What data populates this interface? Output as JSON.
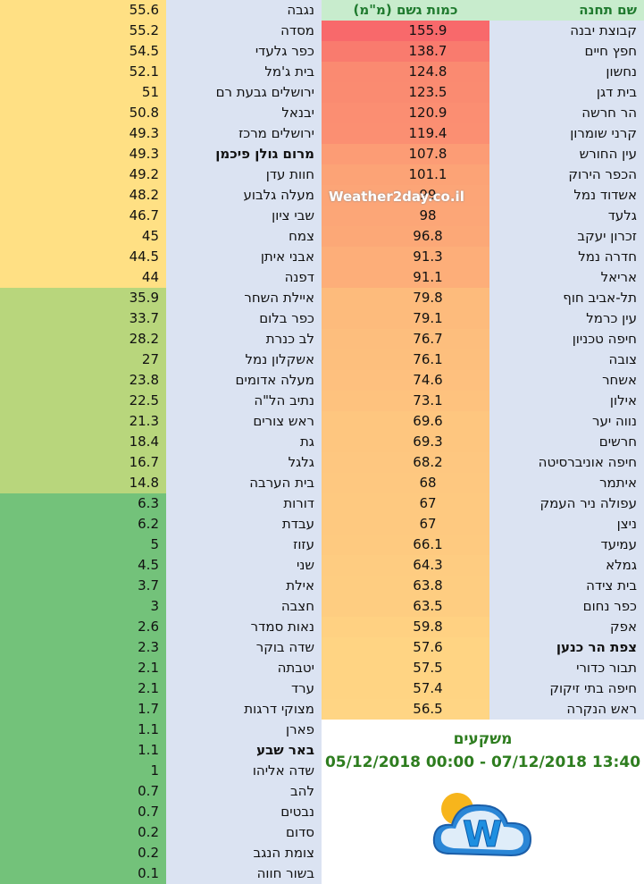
{
  "headers": {
    "station": "שם תחנה",
    "amount": "כמות גשם (מ\"מ)"
  },
  "watermark": "Weather2day.co.il",
  "caption": {
    "line1": "משקעים",
    "line2": "05/12/2018 00:00 - 07/12/2018 13:40"
  },
  "logo": {
    "letter": "W",
    "name": "weather2day-logo"
  },
  "right_rows": [
    {
      "name": "קבוצת יבנה",
      "value": "155.9",
      "color": "#f8696b"
    },
    {
      "name": "חפץ חיים",
      "value": "138.7",
      "color": "#f97b6e"
    },
    {
      "name": "נחשון",
      "value": "124.8",
      "color": "#fa8a71"
    },
    {
      "name": "בית דגן",
      "value": "123.5",
      "color": "#fa8b71"
    },
    {
      "name": "הר חרשה",
      "value": "120.9",
      "color": "#fb8e72"
    },
    {
      "name": "קרני שומרון",
      "value": "119.4",
      "color": "#fb8f72"
    },
    {
      "name": "עין החורש",
      "value": "107.8",
      "color": "#fc9c75"
    },
    {
      "name": "הכפר הירוק",
      "value": "101.1",
      "color": "#fca376"
    },
    {
      "name": "אשדוד נמל",
      "value": "99",
      "color": "#fca577"
    },
    {
      "name": "גלעד",
      "value": "98",
      "color": "#fca677"
    },
    {
      "name": "זכרון יעקב",
      "value": "96.8",
      "color": "#fca877"
    },
    {
      "name": "חדרה נמל",
      "value": "91.3",
      "color": "#fdae79"
    },
    {
      "name": "אריאל",
      "value": "91.1",
      "color": "#fdae79"
    },
    {
      "name": "תל-אביב חוף",
      "value": "79.8",
      "color": "#fdbb7c"
    },
    {
      "name": "עין כרמל",
      "value": "79.1",
      "color": "#fdbb7c"
    },
    {
      "name": "חיפה טכניון",
      "value": "76.7",
      "color": "#fdbe7d"
    },
    {
      "name": "צובה",
      "value": "76.1",
      "color": "#fdbf7d"
    },
    {
      "name": "אשחר",
      "value": "74.6",
      "color": "#fec07e"
    },
    {
      "name": "אילון",
      "value": "73.1",
      "color": "#fec27e"
    },
    {
      "name": "נווה יער",
      "value": "69.6",
      "color": "#fec67f"
    },
    {
      "name": "חרשים",
      "value": "69.3",
      "color": "#fec67f"
    },
    {
      "name": "חיפה אוניברסיטה",
      "value": "68.2",
      "color": "#fec780"
    },
    {
      "name": "איתמר",
      "value": "68",
      "color": "#fec880"
    },
    {
      "name": "עפולה ניר העמק",
      "value": "67",
      "color": "#fec980"
    },
    {
      "name": "ניצן",
      "value": "67",
      "color": "#fec980"
    },
    {
      "name": "עמיעד",
      "value": "66.1",
      "color": "#feca80"
    },
    {
      "name": "גמלא",
      "value": "64.3",
      "color": "#fecc81"
    },
    {
      "name": "בית צידה",
      "value": "63.8",
      "color": "#fecd81"
    },
    {
      "name": "כפר נחום",
      "value": "63.5",
      "color": "#fecd81"
    },
    {
      "name": "אפק",
      "value": "59.8",
      "color": "#ffd182"
    },
    {
      "name": "צפת הר כנען",
      "value": "57.6",
      "color": "#ffd483",
      "bold": true
    },
    {
      "name": "תבור כדורי",
      "value": "57.5",
      "color": "#ffd483"
    },
    {
      "name": "חיפה בתי זיקוק",
      "value": "57.4",
      "color": "#ffd483"
    },
    {
      "name": "ראש הנקרה",
      "value": "56.5",
      "color": "#ffd584"
    }
  ],
  "left_rows": [
    {
      "name": "נגבה",
      "value": "55.6",
      "color": "#ffe084"
    },
    {
      "name": "מסדה",
      "value": "55.2",
      "color": "#ffe084"
    },
    {
      "name": "כפר גלעדי",
      "value": "54.5",
      "color": "#ffe084"
    },
    {
      "name": "בית ג'מל",
      "value": "52.1",
      "color": "#ffe084"
    },
    {
      "name": "ירושלים גבעת רם",
      "value": "51",
      "color": "#ffe084"
    },
    {
      "name": "יבנאל",
      "value": "50.8",
      "color": "#ffe084"
    },
    {
      "name": "ירושלים מרכז",
      "value": "49.3",
      "color": "#ffe084"
    },
    {
      "name": "מרום גולן פיכמן",
      "value": "49.3",
      "color": "#ffe084",
      "bold": true
    },
    {
      "name": "חוות עדן",
      "value": "49.2",
      "color": "#ffe084"
    },
    {
      "name": "מעלה גלבוע",
      "value": "48.2",
      "color": "#ffe084"
    },
    {
      "name": "שבי ציון",
      "value": "46.7",
      "color": "#ffe084"
    },
    {
      "name": "צמח",
      "value": "45",
      "color": "#ffe084"
    },
    {
      "name": "אבני איתן",
      "value": "44.5",
      "color": "#ffe084"
    },
    {
      "name": "דפנה",
      "value": "44",
      "color": "#ffe084"
    },
    {
      "name": "איילת השחר",
      "value": "35.9",
      "color": "#b8d67c"
    },
    {
      "name": "כפר בלום",
      "value": "33.7",
      "color": "#b8d67c"
    },
    {
      "name": "לב כנרת",
      "value": "28.2",
      "color": "#b8d67c"
    },
    {
      "name": "אשקלון נמל",
      "value": "27",
      "color": "#b8d67c"
    },
    {
      "name": "מעלה אדומים",
      "value": "23.8",
      "color": "#b8d67c"
    },
    {
      "name": "נתיב הל\"ה",
      "value": "22.5",
      "color": "#b8d67c"
    },
    {
      "name": "ראש צורים",
      "value": "21.3",
      "color": "#b8d67c"
    },
    {
      "name": "גת",
      "value": "18.4",
      "color": "#b8d67c"
    },
    {
      "name": "גלגל",
      "value": "16.7",
      "color": "#b8d67c"
    },
    {
      "name": "בית הערבה",
      "value": "14.8",
      "color": "#b8d67c"
    },
    {
      "name": "דורות",
      "value": "6.3",
      "color": "#73c27a"
    },
    {
      "name": "עבדת",
      "value": "6.2",
      "color": "#73c27a"
    },
    {
      "name": "עזוז",
      "value": "5",
      "color": "#73c27a"
    },
    {
      "name": "שני",
      "value": "4.5",
      "color": "#73c27a"
    },
    {
      "name": "אילת",
      "value": "3.7",
      "color": "#73c27a"
    },
    {
      "name": "חצבה",
      "value": "3",
      "color": "#73c27a"
    },
    {
      "name": "נאות סמדר",
      "value": "2.6",
      "color": "#73c27a"
    },
    {
      "name": "שדה בוקר",
      "value": "2.3",
      "color": "#73c27a"
    },
    {
      "name": "יטבתה",
      "value": "2.1",
      "color": "#73c27a"
    },
    {
      "name": "ערד",
      "value": "2.1",
      "color": "#73c27a"
    },
    {
      "name": "מצוקי דרגות",
      "value": "1.7",
      "color": "#73c27a"
    },
    {
      "name": "פארן",
      "value": "1.1",
      "color": "#73c27a"
    },
    {
      "name": "באר שבע",
      "value": "1.1",
      "color": "#73c27a",
      "bold": true
    },
    {
      "name": "שדה אליהו",
      "value": "1",
      "color": "#73c27a"
    },
    {
      "name": "להב",
      "value": "0.7",
      "color": "#73c27a"
    },
    {
      "name": "נבטים",
      "value": "0.7",
      "color": "#73c27a"
    },
    {
      "name": "סדום",
      "value": "0.2",
      "color": "#73c27a"
    },
    {
      "name": "צומת הנגב",
      "value": "0.2",
      "color": "#73c27a"
    },
    {
      "name": "בשור חווה",
      "value": "0.1",
      "color": "#73c27a"
    }
  ],
  "colors": {
    "name_bg": "#dbe3f2",
    "header_bg": "#c8eccd",
    "header_text": "#1f7a2e",
    "caption_text": "#2e7d1f"
  }
}
